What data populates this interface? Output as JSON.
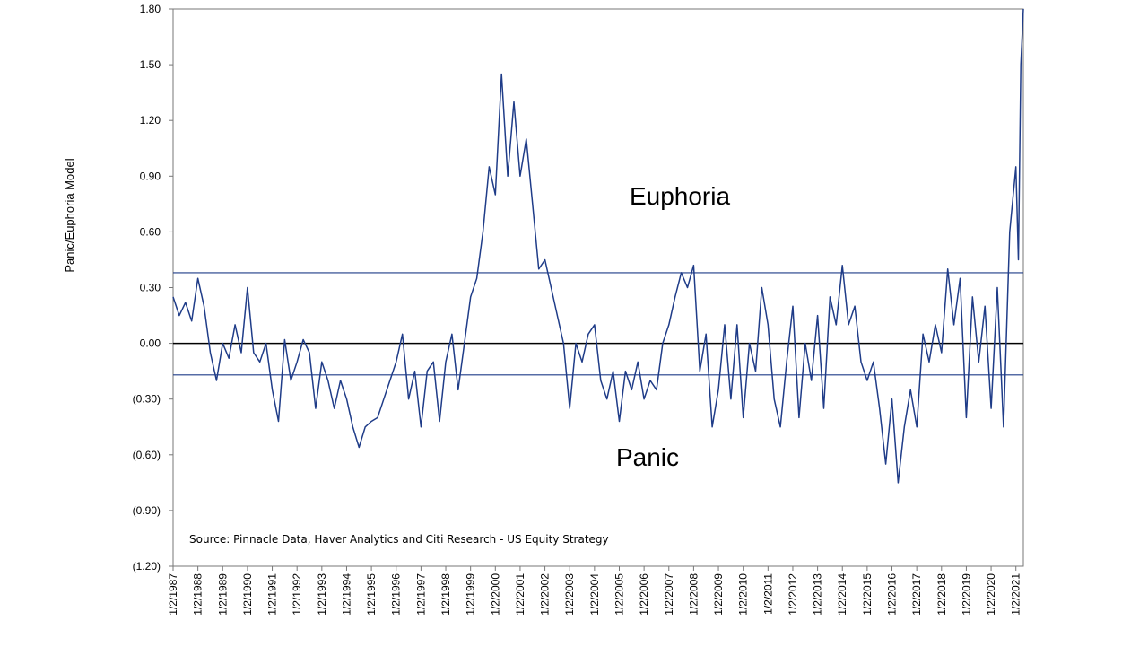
{
  "chart_data": {
    "type": "line",
    "y_label": "Panic/Euphoria  Model",
    "annotations": [
      "Euphoria",
      "Panic",
      "Source:  Pinnacle  Data,  Haver  Analytics  and  Citi  Research  - US  Equity  Strategy"
    ],
    "reference_lines": [
      0.38,
      -0.17
    ],
    "xlim": [
      1987,
      2021.3
    ],
    "ylim": [
      -1.2,
      1.8
    ],
    "yticks": [
      {
        "value": 1.8,
        "label": "1.80"
      },
      {
        "value": 1.5,
        "label": "1.50"
      },
      {
        "value": 1.2,
        "label": "1.20"
      },
      {
        "value": 0.9,
        "label": "0.90"
      },
      {
        "value": 0.6,
        "label": "0.60"
      },
      {
        "value": 0.3,
        "label": "0.30"
      },
      {
        "value": 0,
        "label": "0.00"
      },
      {
        "value": -0.3,
        "label": "(0.30)"
      },
      {
        "value": -0.6,
        "label": "(0.60)"
      },
      {
        "value": -0.9,
        "label": "(0.90)"
      },
      {
        "value": -1.2,
        "label": "(1.20)"
      }
    ],
    "xticks": [
      {
        "value": 1987,
        "label": "1/2/1987"
      },
      {
        "value": 1988,
        "label": "1/2/1988"
      },
      {
        "value": 1989,
        "label": "1/2/1989"
      },
      {
        "value": 1990,
        "label": "1/2/1990"
      },
      {
        "value": 1991,
        "label": "1/2/1991"
      },
      {
        "value": 1992,
        "label": "1/2/1992"
      },
      {
        "value": 1993,
        "label": "1/2/1993"
      },
      {
        "value": 1994,
        "label": "1/2/1994"
      },
      {
        "value": 1995,
        "label": "1/2/1995"
      },
      {
        "value": 1996,
        "label": "1/2/1996"
      },
      {
        "value": 1997,
        "label": "1/2/1997"
      },
      {
        "value": 1998,
        "label": "1/2/1998"
      },
      {
        "value": 1999,
        "label": "1/2/1999"
      },
      {
        "value": 2000,
        "label": "1/2/2000"
      },
      {
        "value": 2001,
        "label": "1/2/2001"
      },
      {
        "value": 2002,
        "label": "1/2/2002"
      },
      {
        "value": 2003,
        "label": "1/2/2003"
      },
      {
        "value": 2004,
        "label": "1/2/2004"
      },
      {
        "value": 2005,
        "label": "1/2/2005"
      },
      {
        "value": 2006,
        "label": "1/2/2006"
      },
      {
        "value": 2007,
        "label": "1/2/2007"
      },
      {
        "value": 2008,
        "label": "1/2/2008"
      },
      {
        "value": 2009,
        "label": "1/2/2009"
      },
      {
        "value": 2010,
        "label": "1/2/2010"
      },
      {
        "value": 2011,
        "label": "1/2/2011"
      },
      {
        "value": 2012,
        "label": "1/2/2012"
      },
      {
        "value": 2013,
        "label": "1/2/2013"
      },
      {
        "value": 2014,
        "label": "1/2/2014"
      },
      {
        "value": 2015,
        "label": "1/2/2015"
      },
      {
        "value": 2016,
        "label": "1/2/2016"
      },
      {
        "value": 2017,
        "label": "1/2/2017"
      },
      {
        "value": 2018,
        "label": "1/2/2018"
      },
      {
        "value": 2019,
        "label": "1/2/2019"
      },
      {
        "value": 2020,
        "label": "1/2/2020"
      },
      {
        "value": 2021,
        "label": "1/2/2021"
      }
    ],
    "color": "#1f3c88",
    "x": [
      1987.0,
      1987.25,
      1987.5,
      1987.75,
      1988.0,
      1988.25,
      1988.5,
      1988.75,
      1989.0,
      1989.25,
      1989.5,
      1989.75,
      1990.0,
      1990.25,
      1990.5,
      1990.75,
      1991.0,
      1991.25,
      1991.5,
      1991.75,
      1992.0,
      1992.25,
      1992.5,
      1992.75,
      1993.0,
      1993.25,
      1993.5,
      1993.75,
      1994.0,
      1994.25,
      1994.5,
      1994.75,
      1995.0,
      1995.25,
      1995.5,
      1995.75,
      1996.0,
      1996.25,
      1996.5,
      1996.75,
      1997.0,
      1997.25,
      1997.5,
      1997.75,
      1998.0,
      1998.25,
      1998.5,
      1998.75,
      1999.0,
      1999.25,
      1999.5,
      1999.75,
      2000.0,
      2000.25,
      2000.5,
      2000.75,
      2001.0,
      2001.25,
      2001.5,
      2001.75,
      2002.0,
      2002.25,
      2002.5,
      2002.75,
      2003.0,
      2003.25,
      2003.5,
      2003.75,
      2004.0,
      2004.25,
      2004.5,
      2004.75,
      2005.0,
      2005.25,
      2005.5,
      2005.75,
      2006.0,
      2006.25,
      2006.5,
      2006.75,
      2007.0,
      2007.25,
      2007.5,
      2007.75,
      2008.0,
      2008.25,
      2008.5,
      2008.75,
      2009.0,
      2009.25,
      2009.5,
      2009.75,
      2010.0,
      2010.25,
      2010.5,
      2010.75,
      2011.0,
      2011.25,
      2011.5,
      2011.75,
      2012.0,
      2012.25,
      2012.5,
      2012.75,
      2013.0,
      2013.25,
      2013.5,
      2013.75,
      2014.0,
      2014.25,
      2014.5,
      2014.75,
      2015.0,
      2015.25,
      2015.5,
      2015.75,
      2016.0,
      2016.25,
      2016.5,
      2016.75,
      2017.0,
      2017.25,
      2017.5,
      2017.75,
      2018.0,
      2018.25,
      2018.5,
      2018.75,
      2019.0,
      2019.25,
      2019.5,
      2019.75,
      2020.0,
      2020.25,
      2020.5,
      2020.75,
      2021.0,
      2021.1,
      2021.2,
      2021.3
    ],
    "values": [
      0.25,
      0.15,
      0.22,
      0.12,
      0.35,
      0.2,
      -0.05,
      -0.2,
      0.0,
      -0.08,
      0.1,
      -0.05,
      0.3,
      -0.05,
      -0.1,
      0.0,
      -0.25,
      -0.42,
      0.02,
      -0.2,
      -0.1,
      0.02,
      -0.05,
      -0.35,
      -0.1,
      -0.2,
      -0.35,
      -0.2,
      -0.3,
      -0.45,
      -0.56,
      -0.45,
      -0.42,
      -0.4,
      -0.3,
      -0.2,
      -0.1,
      0.05,
      -0.3,
      -0.15,
      -0.45,
      -0.15,
      -0.1,
      -0.42,
      -0.1,
      0.05,
      -0.25,
      0.0,
      0.25,
      0.35,
      0.6,
      0.95,
      0.8,
      1.45,
      0.9,
      1.3,
      0.9,
      1.1,
      0.75,
      0.4,
      0.45,
      0.3,
      0.15,
      0.0,
      -0.35,
      0.0,
      -0.1,
      0.05,
      0.1,
      -0.2,
      -0.3,
      -0.15,
      -0.42,
      -0.15,
      -0.25,
      -0.1,
      -0.3,
      -0.2,
      -0.25,
      0.0,
      0.1,
      0.25,
      0.38,
      0.3,
      0.42,
      -0.15,
      0.05,
      -0.45,
      -0.25,
      0.1,
      -0.3,
      0.1,
      -0.4,
      0.0,
      -0.15,
      0.3,
      0.1,
      -0.3,
      -0.45,
      -0.1,
      0.2,
      -0.4,
      0.0,
      -0.2,
      0.15,
      -0.35,
      0.25,
      0.1,
      0.42,
      0.1,
      0.2,
      -0.1,
      -0.2,
      -0.1,
      -0.35,
      -0.65,
      -0.3,
      -0.75,
      -0.45,
      -0.25,
      -0.45,
      0.05,
      -0.1,
      0.1,
      -0.05,
      0.4,
      0.1,
      0.35,
      -0.4,
      0.25,
      -0.1,
      0.2,
      -0.35,
      0.3,
      -0.45,
      0.6,
      0.95,
      0.45,
      1.5,
      1.8
    ]
  }
}
